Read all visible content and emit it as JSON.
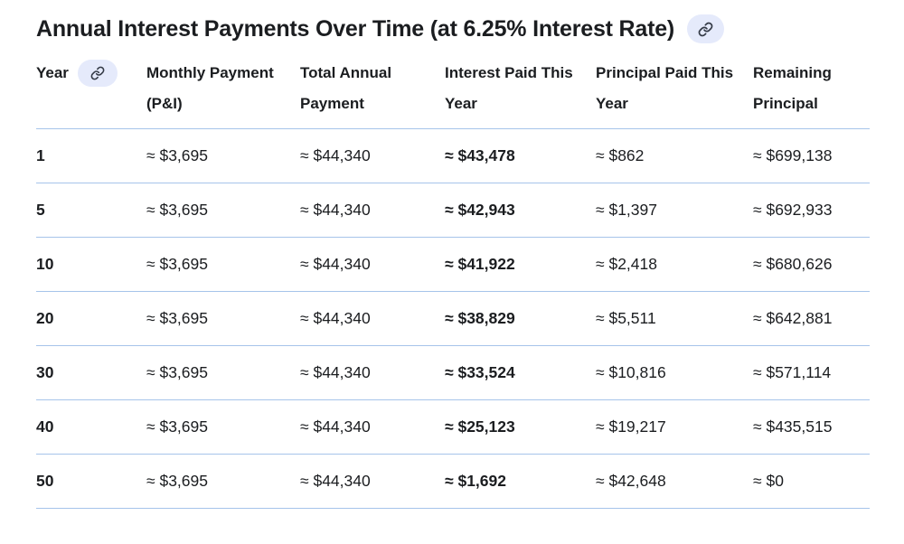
{
  "title": {
    "text": "Annual Interest Payments Over Time (at 6.25% Interest Rate)"
  },
  "icons": {
    "title_link": "link-icon",
    "year_link": "link-icon"
  },
  "colors": {
    "divider": "#a6c4ea",
    "pill-bg": "#e5eafb",
    "text": "#1b1d20",
    "icon": "#343a46",
    "bg": "#ffffff"
  },
  "table": {
    "columns": [
      {
        "key": "year",
        "label": "Year",
        "has_link_pill": true,
        "bold_cells": true
      },
      {
        "key": "monthly",
        "label": "Monthly Payment (P&I)",
        "has_link_pill": false,
        "bold_cells": false
      },
      {
        "key": "annual",
        "label": "Total Annual Payment",
        "has_link_pill": false,
        "bold_cells": false
      },
      {
        "key": "interest",
        "label": "Interest Paid This Year",
        "has_link_pill": false,
        "bold_cells": true
      },
      {
        "key": "principal",
        "label": "Principal Paid This Year",
        "has_link_pill": false,
        "bold_cells": false
      },
      {
        "key": "remaining",
        "label": "Remaining Principal",
        "has_link_pill": false,
        "bold_cells": false
      }
    ],
    "rows": [
      {
        "year": "1",
        "monthly": "≈ $3,695",
        "annual": "≈ $44,340",
        "interest": "≈ $43,478",
        "principal": "≈ $862",
        "remaining": "≈ $699,138"
      },
      {
        "year": "5",
        "monthly": "≈ $3,695",
        "annual": "≈ $44,340",
        "interest": "≈ $42,943",
        "principal": "≈ $1,397",
        "remaining": "≈ $692,933"
      },
      {
        "year": "10",
        "monthly": "≈ $3,695",
        "annual": "≈ $44,340",
        "interest": "≈ $41,922",
        "principal": "≈ $2,418",
        "remaining": "≈ $680,626"
      },
      {
        "year": "20",
        "monthly": "≈ $3,695",
        "annual": "≈ $44,340",
        "interest": "≈ $38,829",
        "principal": "≈ $5,511",
        "remaining": "≈ $642,881"
      },
      {
        "year": "30",
        "monthly": "≈ $3,695",
        "annual": "≈ $44,340",
        "interest": "≈ $33,524",
        "principal": "≈ $10,816",
        "remaining": "≈ $571,114"
      },
      {
        "year": "40",
        "monthly": "≈ $3,695",
        "annual": "≈ $44,340",
        "interest": "≈ $25,123",
        "principal": "≈ $19,217",
        "remaining": "≈ $435,515"
      },
      {
        "year": "50",
        "monthly": "≈ $3,695",
        "annual": "≈ $44,340",
        "interest": "≈ $1,692",
        "principal": "≈ $42,648",
        "remaining": "≈ $0"
      }
    ]
  }
}
